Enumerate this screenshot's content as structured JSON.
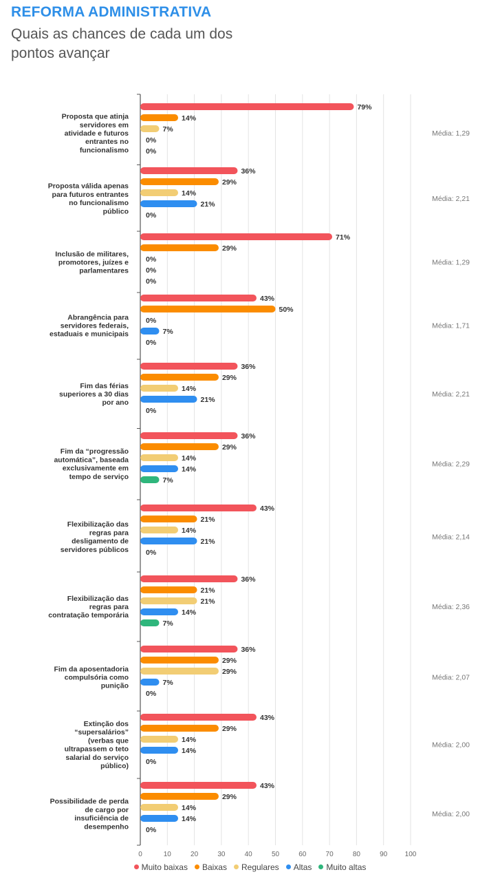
{
  "header": {
    "kicker": "REFORMA ADMINISTRATIVA",
    "subtitle": "Quais as chances de cada um dos pontos avançar"
  },
  "colors": {
    "Muito baixas": "#f2545b",
    "Baixas": "#fb8c00",
    "Regulares": "#f2cd74",
    "Altas": "#2f8ef0",
    "Muito altas": "#2fb67c",
    "kicker": "#2e8fe8"
  },
  "chart_data": {
    "type": "bar",
    "orientation": "horizontal",
    "xlim": [
      0,
      100
    ],
    "x_ticks": [
      "0",
      "10",
      "20",
      "30",
      "40",
      "50",
      "60",
      "70",
      "80",
      "90",
      "100"
    ],
    "value_suffix": "%",
    "grid": true,
    "legend_position": "bottom",
    "series_names": [
      "Muito baixas",
      "Baixas",
      "Regulares",
      "Altas",
      "Muito altas"
    ],
    "groups": [
      {
        "label": "Proposta que atinja servidores em atividade e futuros entrantes no funcionalismo",
        "values": [
          79,
          14,
          7,
          0,
          0
        ],
        "media": "Média: 1,29"
      },
      {
        "label": "Proposta válida apenas para futuros entrantes no funcionalismo público",
        "values": [
          36,
          29,
          14,
          21,
          0
        ],
        "media": "Média: 2,21"
      },
      {
        "label": "Inclusão de militares, promotores, juízes e parlamentares",
        "values": [
          71,
          29,
          0,
          0,
          0
        ],
        "media": "Média: 1,29"
      },
      {
        "label": "Abrangência para servidores federais, estaduais e municipais",
        "values": [
          43,
          50,
          0,
          7,
          0
        ],
        "media": "Média: 1,71"
      },
      {
        "label": "Fim das férias superiores a 30 dias por ano",
        "values": [
          36,
          29,
          14,
          21,
          0
        ],
        "media": "Média: 2,21"
      },
      {
        "label": "Fim da “progressão automática”, baseada exclusivamente em tempo de serviço",
        "values": [
          36,
          29,
          14,
          14,
          7
        ],
        "media": "Média: 2,29"
      },
      {
        "label": "Flexibilização das regras para desligamento de servidores públicos",
        "values": [
          43,
          21,
          14,
          21,
          0
        ],
        "media": "Média: 2,14"
      },
      {
        "label": "Flexibilização das regras para contratação temporária",
        "values": [
          36,
          21,
          21,
          14,
          7
        ],
        "media": "Média: 2,36"
      },
      {
        "label": "Fim da aposentadoria compulsória como punição",
        "values": [
          36,
          29,
          29,
          7,
          0
        ],
        "media": "Média: 2,07"
      },
      {
        "label": "Extinção dos “supersalários” (verbas que ultrapassem o teto salarial do serviço público)",
        "values": [
          43,
          29,
          14,
          14,
          0
        ],
        "media": "Média: 2,00"
      },
      {
        "label": "Possibilidade de perda de cargo por insuficiência de desempenho",
        "values": [
          43,
          29,
          14,
          14,
          0
        ],
        "media": "Média: 2,00"
      }
    ]
  }
}
